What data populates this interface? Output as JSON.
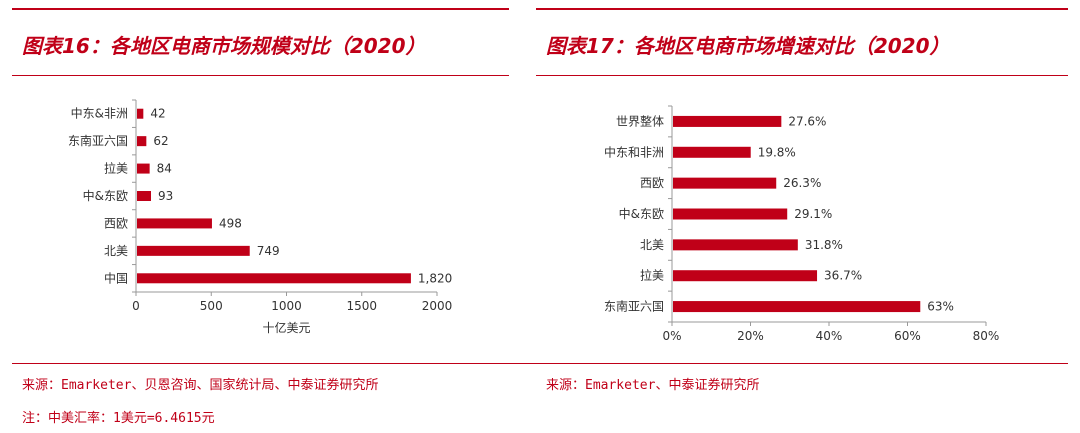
{
  "colors": {
    "accent": "#c00018",
    "bar": "#c00018"
  },
  "left": {
    "title": "图表16：各地区电商市场规模对比（2020）",
    "source": "来源：Emarketer、贝恩咨询、国家统计局、中泰证券研究所",
    "note": "注：中美汇率：1美元=6.4615元"
  },
  "right": {
    "title": "图表17：各地区电商市场增速对比（2020）",
    "source": "来源：Emarketer、中泰证券研究所"
  },
  "chart_data": [
    {
      "type": "bar",
      "orientation": "horizontal",
      "categories": [
        "中东&非洲",
        "东南亚六国",
        "拉美",
        "中&东欧",
        "西欧",
        "北美",
        "中国"
      ],
      "values": [
        42,
        62,
        84,
        93,
        498,
        749,
        1820
      ],
      "value_labels": [
        "42",
        "62",
        "84",
        "93",
        "498",
        "749",
        "1,820"
      ],
      "xlabel": "十亿美元",
      "xlim": [
        0,
        2000
      ],
      "xticks": [
        0,
        500,
        1000,
        1500,
        2000
      ],
      "xtick_labels": [
        "0",
        "500",
        "1000",
        "1500",
        "2000"
      ]
    },
    {
      "type": "bar",
      "orientation": "horizontal",
      "categories": [
        "世界整体",
        "中东和非洲",
        "西欧",
        "中&东欧",
        "北美",
        "拉美",
        "东南亚六国"
      ],
      "values": [
        27.6,
        19.8,
        26.3,
        29.1,
        31.8,
        36.7,
        63
      ],
      "value_labels": [
        "27.6%",
        "19.8%",
        "26.3%",
        "29.1%",
        "31.8%",
        "36.7%",
        "63%"
      ],
      "xlim": [
        0,
        80
      ],
      "xticks": [
        0,
        20,
        40,
        60,
        80
      ],
      "xtick_labels": [
        "0%",
        "20%",
        "40%",
        "60%",
        "80%"
      ]
    }
  ]
}
